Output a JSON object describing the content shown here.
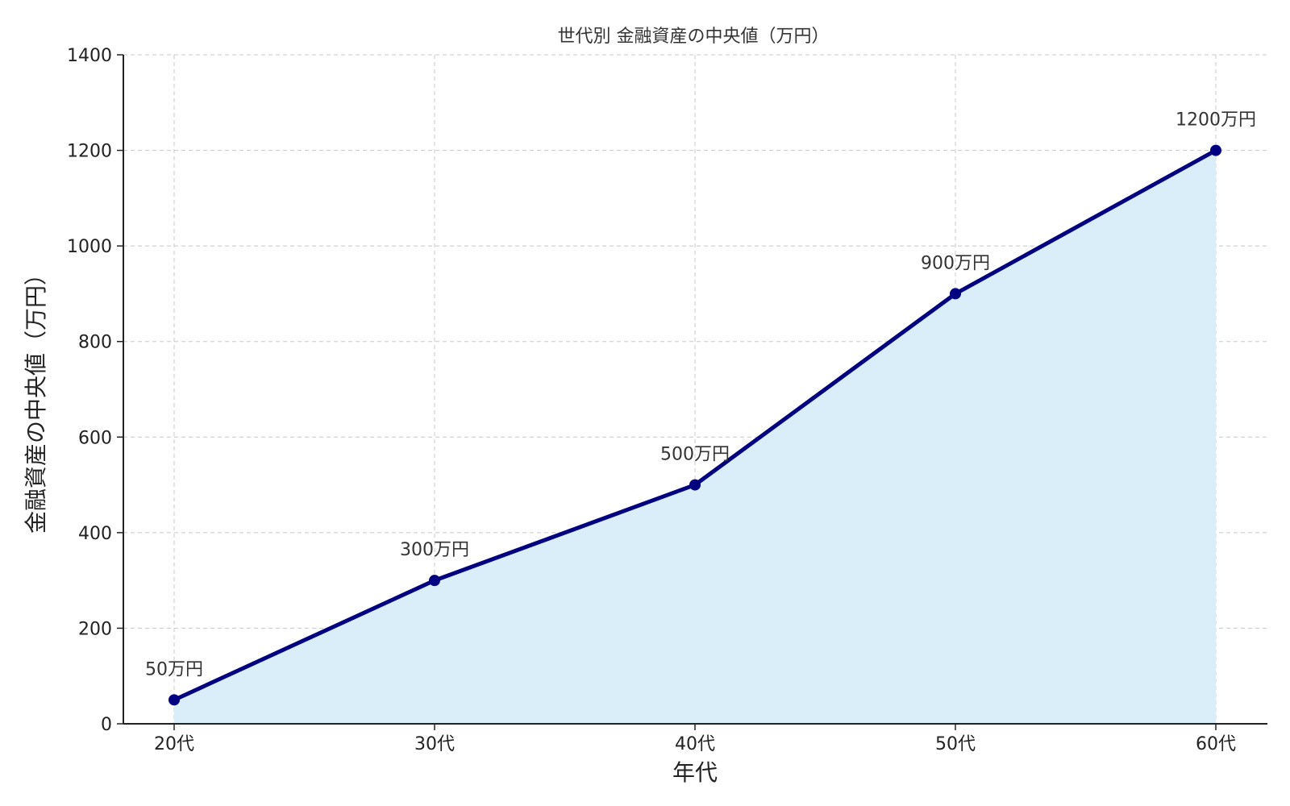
{
  "chart_data": {
    "type": "area",
    "title": "世代別 金融資産の中央値（万円）",
    "xlabel": "年代",
    "ylabel": "金融資産の中央値（万円）",
    "categories": [
      "20代",
      "30代",
      "40代",
      "50代",
      "60代"
    ],
    "values": [
      50,
      300,
      500,
      900,
      1200
    ],
    "data_labels": [
      "50万円",
      "300万円",
      "500万円",
      "900万円",
      "1200万円"
    ],
    "ylim": [
      0,
      1400
    ],
    "yticks": [
      0,
      200,
      400,
      600,
      800,
      1000,
      1200,
      1400
    ],
    "ytick_labels": [
      "0",
      "200",
      "400",
      "600",
      "800",
      "1000",
      "1200",
      "1400"
    ],
    "grid": true,
    "line_color": "#000080",
    "fill_color": "#d9eef8",
    "marker_color": "#000080"
  }
}
